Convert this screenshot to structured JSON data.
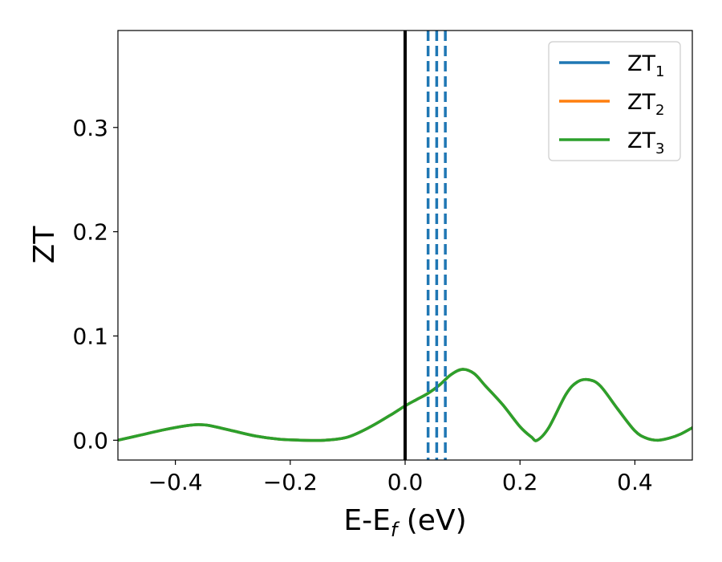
{
  "chart_data": {
    "type": "line",
    "xlabel": {
      "main": "E-E",
      "sub": "f",
      "unit": " (eV)"
    },
    "ylabel": "ZT",
    "xlim": [
      -0.5,
      0.5
    ],
    "ylim": [
      -0.019,
      0.393
    ],
    "xticks": [
      -0.4,
      -0.2,
      0.0,
      0.2,
      0.4
    ],
    "xtick_labels": [
      "−0.4",
      "−0.2",
      "0.0",
      "0.2",
      "0.4"
    ],
    "yticks": [
      0.0,
      0.1,
      0.2,
      0.3
    ],
    "ytick_labels": [
      "0.0",
      "0.1",
      "0.2",
      "0.3"
    ],
    "legend_position": "top-right",
    "grid": false,
    "series": [
      {
        "name": "ZT",
        "name_sub": "1",
        "color": "#1f77b4",
        "x": [
          -0.5,
          -0.46,
          -0.42,
          -0.38,
          -0.36,
          -0.34,
          -0.3,
          -0.26,
          -0.22,
          -0.18,
          -0.14,
          -0.1,
          -0.06,
          -0.02,
          0.0,
          0.02,
          0.04,
          0.06,
          0.08,
          0.1,
          0.12,
          0.14,
          0.17,
          0.2,
          0.22,
          0.23,
          0.25,
          0.28,
          0.3,
          0.32,
          0.34,
          0.37,
          0.4,
          0.42,
          0.44,
          0.46,
          0.48,
          0.5
        ],
        "y": [
          0.0,
          0.005,
          0.01,
          0.014,
          0.015,
          0.014,
          0.009,
          0.004,
          0.001,
          0.0,
          0.0,
          0.003,
          0.013,
          0.026,
          0.033,
          0.039,
          0.045,
          0.053,
          0.063,
          0.068,
          0.064,
          0.052,
          0.034,
          0.013,
          0.003,
          0.0,
          0.012,
          0.044,
          0.056,
          0.058,
          0.052,
          0.03,
          0.009,
          0.002,
          0.0,
          0.002,
          0.006,
          0.012
        ]
      },
      {
        "name": "ZT",
        "name_sub": "2",
        "color": "#ff7f0e",
        "x": [
          -0.5,
          -0.46,
          -0.42,
          -0.38,
          -0.36,
          -0.34,
          -0.3,
          -0.26,
          -0.22,
          -0.18,
          -0.14,
          -0.1,
          -0.06,
          -0.02,
          0.0,
          0.02,
          0.04,
          0.06,
          0.08,
          0.1,
          0.12,
          0.14,
          0.17,
          0.2,
          0.22,
          0.23,
          0.25,
          0.28,
          0.3,
          0.32,
          0.34,
          0.37,
          0.4,
          0.42,
          0.44,
          0.46,
          0.48,
          0.5
        ],
        "y": [
          0.0,
          0.005,
          0.01,
          0.014,
          0.015,
          0.014,
          0.009,
          0.004,
          0.001,
          0.0,
          0.0,
          0.003,
          0.013,
          0.026,
          0.033,
          0.039,
          0.045,
          0.053,
          0.063,
          0.068,
          0.064,
          0.052,
          0.034,
          0.013,
          0.003,
          0.0,
          0.012,
          0.044,
          0.056,
          0.058,
          0.052,
          0.03,
          0.009,
          0.002,
          0.0,
          0.002,
          0.006,
          0.012
        ]
      },
      {
        "name": "ZT",
        "name_sub": "3",
        "color": "#2ca02c",
        "x": [
          -0.5,
          -0.46,
          -0.42,
          -0.38,
          -0.36,
          -0.34,
          -0.3,
          -0.26,
          -0.22,
          -0.18,
          -0.14,
          -0.1,
          -0.06,
          -0.02,
          0.0,
          0.02,
          0.04,
          0.06,
          0.08,
          0.1,
          0.12,
          0.14,
          0.17,
          0.2,
          0.22,
          0.23,
          0.25,
          0.28,
          0.3,
          0.32,
          0.34,
          0.37,
          0.4,
          0.42,
          0.44,
          0.46,
          0.48,
          0.5
        ],
        "y": [
          0.0,
          0.005,
          0.01,
          0.014,
          0.015,
          0.014,
          0.009,
          0.004,
          0.001,
          0.0,
          0.0,
          0.003,
          0.013,
          0.026,
          0.033,
          0.039,
          0.045,
          0.053,
          0.063,
          0.068,
          0.064,
          0.052,
          0.034,
          0.013,
          0.003,
          0.0,
          0.012,
          0.044,
          0.056,
          0.058,
          0.052,
          0.03,
          0.009,
          0.002,
          0.0,
          0.002,
          0.006,
          0.012
        ]
      }
    ],
    "vlines": [
      {
        "x": 0.0,
        "style": "solid",
        "color": "#000000"
      },
      {
        "x": 0.04,
        "style": "dashed",
        "color": "#1f77b4"
      },
      {
        "x": 0.055,
        "style": "dashed",
        "color": "#1f77b4"
      },
      {
        "x": 0.07,
        "style": "dashed",
        "color": "#1f77b4"
      }
    ]
  }
}
